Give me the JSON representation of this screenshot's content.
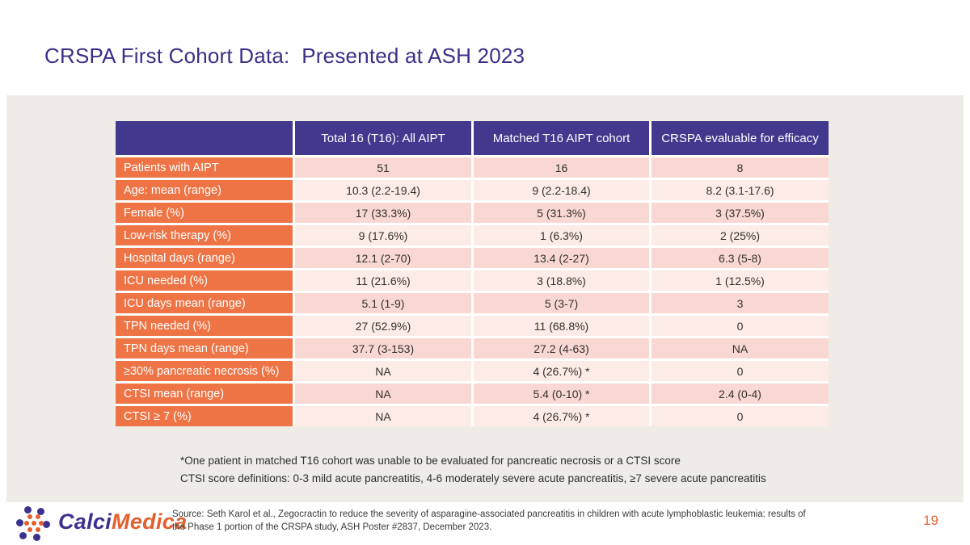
{
  "slide": {
    "title": "CRSPA First Cohort Data:  Presented at ASH 2023",
    "page_number": "19"
  },
  "table": {
    "columns": [
      "",
      "Total 16 (T16): All AIPT",
      "Matched T16 AIPT cohort",
      "CRSPA evaluable for efficacy"
    ],
    "rows": [
      {
        "label": "Patients with AIPT",
        "values": [
          "51",
          "16",
          "8"
        ]
      },
      {
        "label": "Age: mean (range)",
        "values": [
          "10.3 (2.2-19.4)",
          "9 (2.2-18.4)",
          "8.2 (3.1-17.6)"
        ]
      },
      {
        "label": "Female (%)",
        "values": [
          "17 (33.3%)",
          "5 (31.3%)",
          "3 (37.5%)"
        ]
      },
      {
        "label": "Low-risk therapy (%)",
        "values": [
          "9 (17.6%)",
          "1 (6.3%)",
          "2 (25%)"
        ]
      },
      {
        "label": "Hospital days (range)",
        "values": [
          "12.1 (2-70)",
          "13.4 (2-27)",
          "6.3 (5-8)"
        ]
      },
      {
        "label": "ICU needed (%)",
        "values": [
          "11 (21.6%)",
          "3 (18.8%)",
          "1 (12.5%)"
        ]
      },
      {
        "label": "ICU days mean (range)",
        "values": [
          "5.1 (1-9)",
          "5 (3-7)",
          "3"
        ]
      },
      {
        "label": "TPN needed (%)",
        "values": [
          "27 (52.9%)",
          "11 (68.8%)",
          "0"
        ]
      },
      {
        "label": "TPN days mean (range)",
        "values": [
          "37.7 (3-153)",
          "27.2 (4-63)",
          "NA"
        ]
      },
      {
        "label": "≥30% pancreatic necrosis (%)",
        "values": [
          "NA",
          "4 (26.7%) *",
          "0"
        ]
      },
      {
        "label": "CTSI mean (range)",
        "values": [
          "NA",
          "5.4 (0-10) *",
          "2.4 (0-4)"
        ]
      },
      {
        "label": "CTSI ≥ 7 (%)",
        "values": [
          "NA",
          "4 (26.7%) *",
          "0"
        ]
      }
    ]
  },
  "footnotes": {
    "line1": "*One patient in matched T16 cohort was unable to be evaluated for pancreatic necrosis or a CTSI score",
    "line2": "CTSI score definitions: 0-3 mild acute pancreatitis, 4-6 moderately severe acute pancreatitis, ≥7 severe acute pancreatitis"
  },
  "footer": {
    "logo_calci": "Calci",
    "logo_medica": "Medica",
    "source": "Source:  Seth Karol et al., Zegocractin to reduce the severity of asparagine-associated pancreatitis in children with acute lymphoblastic leukemia: results of\nthe Phase 1 portion of the CRSPA study, ASH Poster #2837, December 2023."
  },
  "colors": {
    "header_purple": "#42398F",
    "label_orange": "#EE7446",
    "row_pink_dark": "#F9D8D3",
    "row_pink_light": "#FCEBE7",
    "panel_bg": "#EFECE7",
    "title_indigo": "#3B2E88",
    "accent_orange": "#E4673E"
  }
}
